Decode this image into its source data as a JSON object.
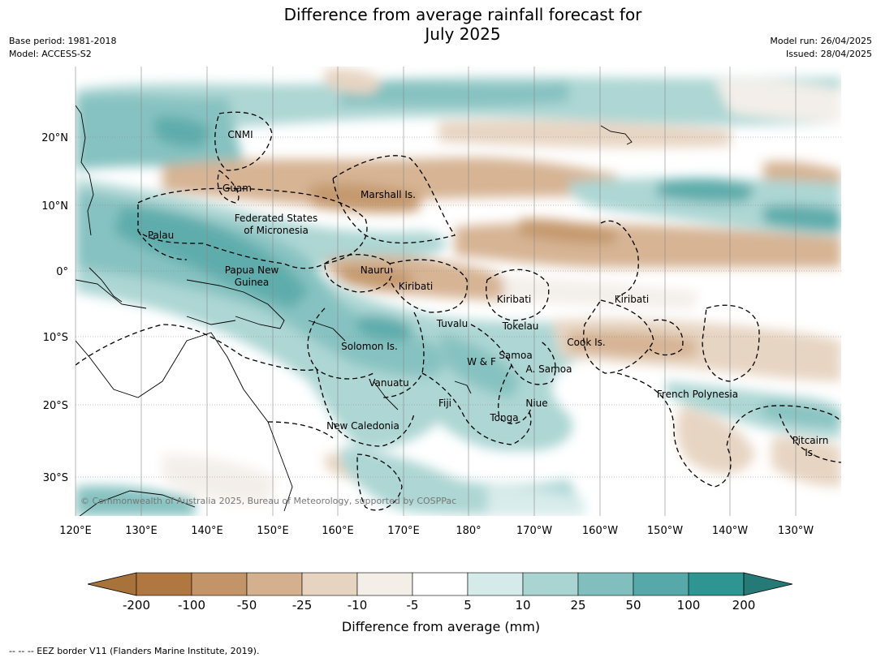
{
  "title_line1": "Difference from average rainfall forecast for",
  "title_line2": "July 2025",
  "meta_left": {
    "base_period": "Base period: 1981-2018",
    "model": "Model: ACCESS-S2"
  },
  "meta_right": {
    "model_run": "Model run: 26/04/2025",
    "issued": "Issued: 28/04/2025"
  },
  "map": {
    "lat_labels": [
      "20°N",
      "10°N",
      "0°",
      "10°S",
      "20°S",
      "30°S"
    ],
    "lon_labels": [
      "120°E",
      "130°E",
      "140°E",
      "150°E",
      "160°E",
      "170°E",
      "180°",
      "170°W",
      "160°W",
      "150°W",
      "140°W",
      "130°W"
    ],
    "copyright": "© Commonwealth of Australia 2025, Bureau of Meteorology, supported by COSPPac",
    "place_labels": [
      {
        "text": "CNMI"
      },
      {
        "text": "Guam"
      },
      {
        "text": "Marshall Is."
      },
      {
        "text": "Federated States"
      },
      {
        "text": "of Micronesia"
      },
      {
        "text": "Palau"
      },
      {
        "text": "Papua New"
      },
      {
        "text": "Guinea"
      },
      {
        "text": "Nauru"
      },
      {
        "text": "Kiribati"
      },
      {
        "text": "Kiribati"
      },
      {
        "text": "Kiribati"
      },
      {
        "text": "Tuvalu"
      },
      {
        "text": "Tokelau"
      },
      {
        "text": "Cook Is."
      },
      {
        "text": "Solomon Is."
      },
      {
        "text": "Samoa"
      },
      {
        "text": "W & F"
      },
      {
        "text": "A. Samoa"
      },
      {
        "text": "Vanuatu"
      },
      {
        "text": "Fiji"
      },
      {
        "text": "Niue"
      },
      {
        "text": "French Polynesia"
      },
      {
        "text": "Tonga"
      },
      {
        "text": "New Caledonia"
      },
      {
        "text": "Pitcairn"
      },
      {
        "text": "Is."
      }
    ]
  },
  "legend": {
    "colors": [
      "#a8733a",
      "#b07840",
      "#c29468",
      "#d4b08f",
      "#e6d3c0",
      "#f3eee8",
      "#ffffff",
      "#d5ebea",
      "#a9d4d2",
      "#80bfbe",
      "#56a9a8",
      "#2f9593",
      "#257a78"
    ],
    "tick_labels": [
      "-200",
      "-100",
      "-50",
      "-25",
      "-10",
      "-5",
      "5",
      "10",
      "25",
      "50",
      "100",
      "200"
    ],
    "axis_label": "Difference from average (mm)"
  },
  "footer": "--  --  -- EEZ border V11 (Flanders Marine Institute, 2019)."
}
